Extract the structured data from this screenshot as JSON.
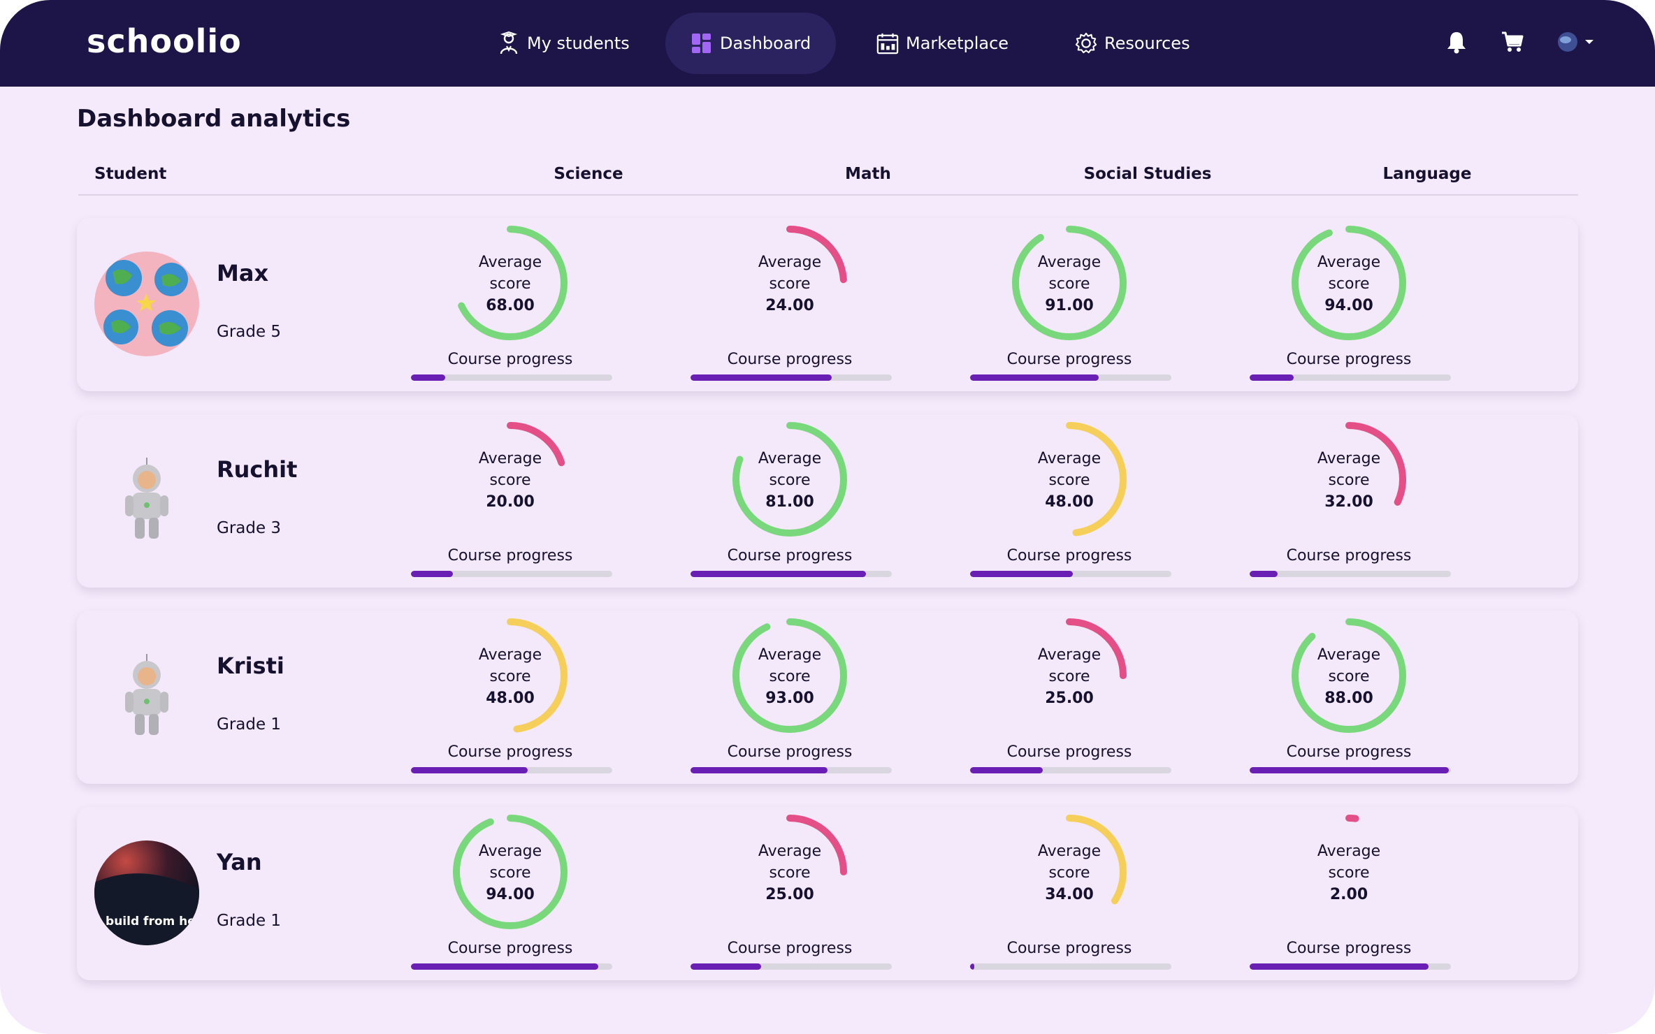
{
  "app": {
    "logo": "schoolio"
  },
  "nav": {
    "items": [
      {
        "label": "My students",
        "icon": "student-icon"
      },
      {
        "label": "Dashboard",
        "icon": "dashboard-icon"
      },
      {
        "label": "Marketplace",
        "icon": "calendar-icon"
      },
      {
        "label": "Resources",
        "icon": "gear-icon"
      }
    ],
    "right_icons": [
      "bell-icon",
      "cart-icon",
      "avatar-dropdown-icon"
    ]
  },
  "page": {
    "title": "Dashboard analytics"
  },
  "table": {
    "headers": [
      "Student",
      "Science",
      "Math",
      "Social Studies",
      "Language"
    ],
    "score_label_1": "Average",
    "score_label_2": "score",
    "progress_label": "Course progress"
  },
  "colors": {
    "green": "#7ad87c",
    "pink": "#e34f86",
    "yellow": "#f5cf5a",
    "progress": "#6a1fb4",
    "nav": "#1d1548"
  },
  "students": [
    {
      "name": "Max",
      "grade": "Grade 5",
      "avatar": "earth-pattern-avatar",
      "subjects": [
        {
          "score": "68.00",
          "progress": 0.17
        },
        {
          "score": "24.00",
          "progress": 0.7
        },
        {
          "score": "91.00",
          "progress": 0.64
        },
        {
          "score": "94.00",
          "progress": 0.22
        }
      ]
    },
    {
      "name": "Ruchit",
      "grade": "Grade 3",
      "avatar": "astronaut-avatar",
      "subjects": [
        {
          "score": "20.00",
          "progress": 0.21
        },
        {
          "score": "81.00",
          "progress": 0.87
        },
        {
          "score": "48.00",
          "progress": 0.51
        },
        {
          "score": "32.00",
          "progress": 0.14
        }
      ]
    },
    {
      "name": "Kristi",
      "grade": "Grade 1",
      "avatar": "astronaut-avatar",
      "subjects": [
        {
          "score": "48.00",
          "progress": 0.58
        },
        {
          "score": "93.00",
          "progress": 0.68
        },
        {
          "score": "25.00",
          "progress": 0.36
        },
        {
          "score": "88.00",
          "progress": 0.99
        }
      ]
    },
    {
      "name": "Yan",
      "grade": "Grade 1",
      "avatar": "space-video-avatar",
      "avatar_text": "s build from he",
      "subjects": [
        {
          "score": "94.00",
          "progress": 0.93
        },
        {
          "score": "25.00",
          "progress": 0.35
        },
        {
          "score": "34.00",
          "progress": 0.02
        },
        {
          "score": "2.00",
          "progress": 0.89
        }
      ]
    }
  ]
}
